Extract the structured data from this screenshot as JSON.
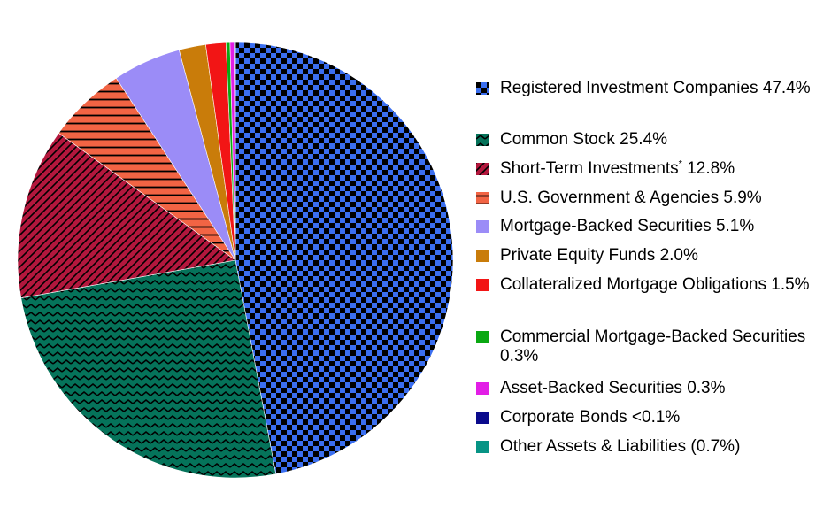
{
  "chart_data": {
    "type": "pie",
    "start_angle_deg": 90,
    "direction": "clockwise",
    "slices": [
      {
        "label": "Registered Investment Companies",
        "value": 47.4,
        "display": "47.4%",
        "color": "#3b6ff0",
        "pattern": "checker",
        "pattern_color": "#000000"
      },
      {
        "label": "Common Stock",
        "value": 25.4,
        "display": "25.4%",
        "color": "#05735a",
        "pattern": "zigzag",
        "pattern_color": "#000000"
      },
      {
        "label": "Short-Term Investments",
        "label_sup": "*",
        "value": 12.8,
        "display": "12.8%",
        "color": "#b3173d",
        "pattern": "diagonal",
        "pattern_color": "#000000"
      },
      {
        "label": "U.S. Government & Agencies",
        "value": 5.9,
        "display": "5.9%",
        "color": "#f26444",
        "pattern": "horizontal",
        "pattern_color": "#000000"
      },
      {
        "label": "Mortgage-Backed Securities",
        "value": 5.1,
        "display": "5.1%",
        "color": "#9b8cf7",
        "pattern": "solid"
      },
      {
        "label": "Private Equity Funds",
        "value": 2.0,
        "display": "2.0%",
        "color": "#c97c0a",
        "pattern": "solid"
      },
      {
        "label": "Collateralized Mortgage Obligations",
        "value": 1.5,
        "display": "1.5%",
        "color": "#f21515",
        "pattern": "solid"
      },
      {
        "label": "Commercial Mortgage-Backed Securities",
        "value": 0.3,
        "display": "0.3%",
        "color": "#0aa812",
        "pattern": "solid"
      },
      {
        "label": "Asset-Backed Securities",
        "value": 0.3,
        "display": "0.3%",
        "color": "#e21ee6",
        "pattern": "solid"
      },
      {
        "label": "Corporate Bonds",
        "value": 0.1,
        "display": "<0.1%",
        "color": "#0a0a8c",
        "pattern": "solid"
      },
      {
        "label": "Other Assets & Liabilities",
        "value": -0.7,
        "display": "(0.7%)",
        "color": "#079485",
        "pattern": "solid"
      }
    ],
    "legend_position": "right"
  },
  "legend": {
    "items": [
      {
        "text": "Registered Investment Companies 47.4%"
      },
      {
        "text": "Common Stock 25.4%"
      },
      {
        "text": "Short-Term Investments",
        "sup": "*",
        "text_after": " 12.8%"
      },
      {
        "text": "U.S. Government & Agencies 5.9%"
      },
      {
        "text": "Mortgage-Backed Securities 5.1%"
      },
      {
        "text": "Private Equity Funds 2.0%"
      },
      {
        "text": "Collateralized Mortgage Obligations 1.5%"
      },
      {
        "text": "Commercial Mortgage-Backed Securities 0.3%"
      },
      {
        "text": "Asset-Backed Securities 0.3%"
      },
      {
        "text": "Corporate Bonds <0.1%"
      },
      {
        "text": "Other Assets & Liabilities (0.7%)"
      }
    ]
  }
}
